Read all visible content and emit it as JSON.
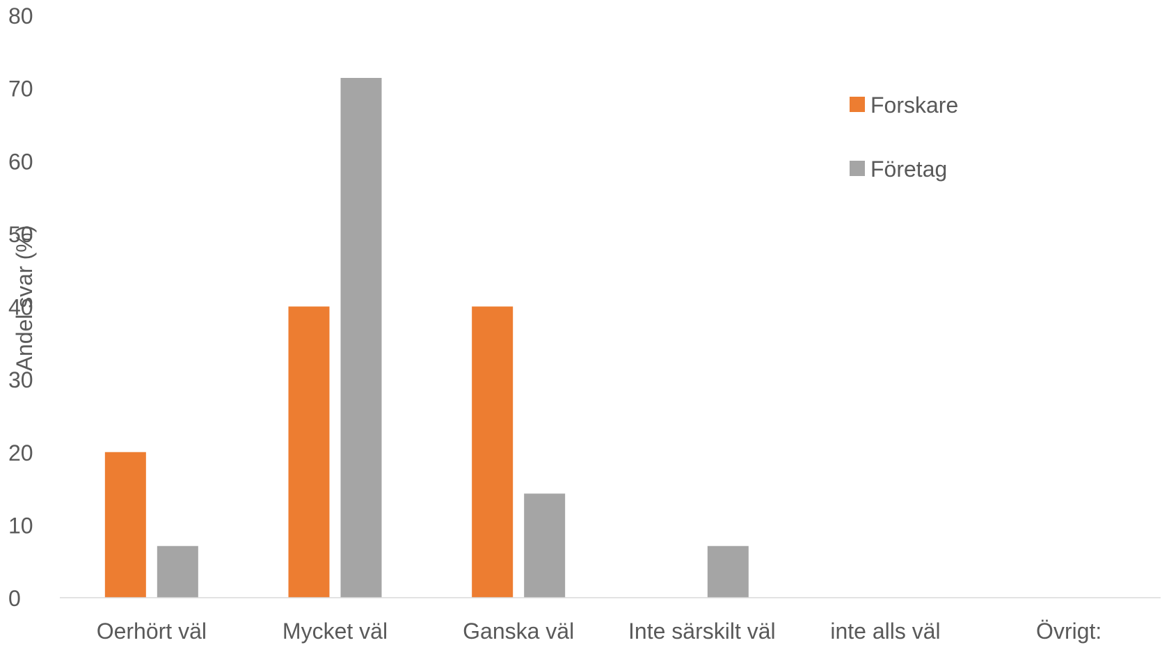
{
  "chart_data": {
    "type": "bar",
    "ylabel": "Andel svar (%)",
    "ylim": [
      0,
      80
    ],
    "yticks": [
      0,
      10,
      20,
      30,
      40,
      50,
      60,
      70,
      80
    ],
    "categories": [
      "Oerhört väl",
      "Mycket väl",
      "Ganska väl",
      "Inte särskilt väl",
      "inte alls väl",
      "Övrigt:"
    ],
    "series": [
      {
        "name": "Forskare",
        "color": "#ED7D31",
        "values": [
          20,
          40,
          40,
          0,
          0,
          0
        ]
      },
      {
        "name": "Företag",
        "color": "#A5A5A5",
        "values": [
          7.1,
          71.4,
          14.3,
          7.1,
          0,
          0
        ]
      }
    ],
    "grid": false,
    "legend_position": "top-right"
  }
}
